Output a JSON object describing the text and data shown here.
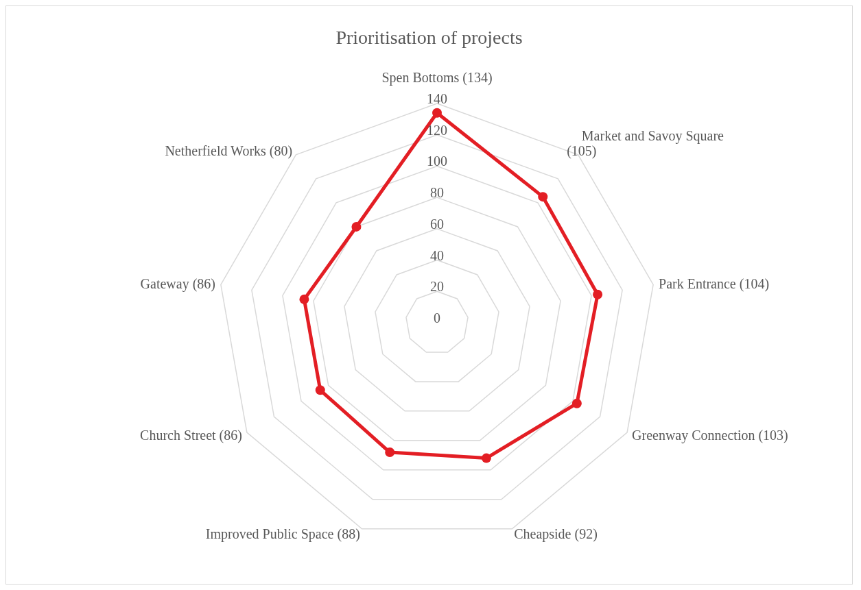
{
  "chart_data": {
    "type": "radar",
    "title": "Prioritisation of projects",
    "categories": [
      "Spen Bottoms (134)",
      "Market and Savoy Square (105)",
      "Park Entrance (104)",
      "Greenway Connection (103)",
      "Cheapside (92)",
      "Improved Public Space (88)",
      "Church Street (86)",
      "Gateway (86)",
      "Netherfield Works (80)"
    ],
    "series": [
      {
        "color": "#e31e24",
        "values": [
          134,
          105,
          104,
          103,
          92,
          88,
          86,
          86,
          80
        ]
      }
    ],
    "ylim": [
      0,
      140
    ],
    "yticks": [
      0,
      20,
      40,
      60,
      80,
      100,
      120,
      140
    ],
    "grid": true,
    "marker": "circle"
  }
}
